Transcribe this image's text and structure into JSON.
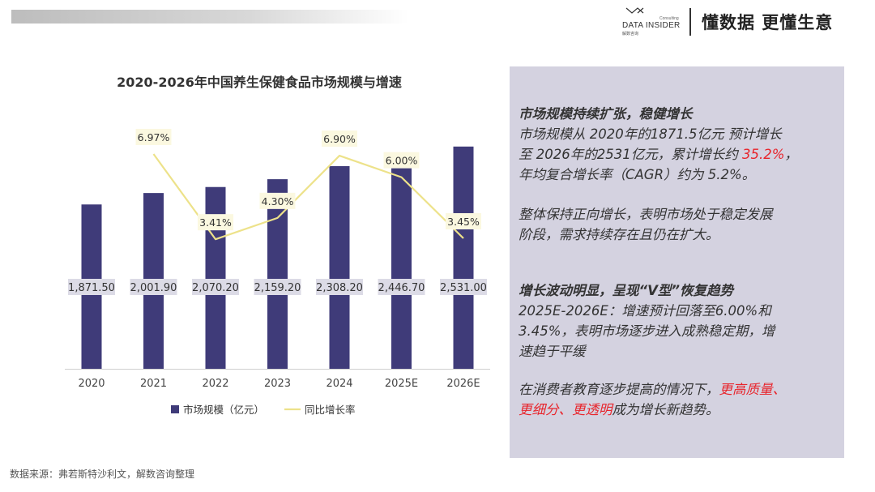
{
  "header": {
    "brand_name": "DATA INSIDER",
    "brand_sub": "Consulting",
    "brand_cn": "解数咨询",
    "slogan": "懂数据 更懂生意"
  },
  "colors": {
    "bar": "#3f3b79",
    "line": "#ede28a",
    "panel": "#d4d2e0",
    "highlight": "#e8242b"
  },
  "chart_data": {
    "type": "bar",
    "title": "2020-2026年中国养生保健食品市场规模与增速",
    "categories": [
      "2020",
      "2021",
      "2022",
      "2023",
      "2024",
      "2025E",
      "2026E"
    ],
    "series": [
      {
        "name": "市场规模（亿元）",
        "type": "bar",
        "values": [
          1871.5,
          2001.9,
          2070.2,
          2159.2,
          2308.2,
          2446.7,
          2531.0
        ],
        "labels": [
          "1,871.50",
          "2,001.90",
          "2,070.20",
          "2,159.20",
          "2,308.20",
          "2,446.70",
          "2,531.00"
        ]
      },
      {
        "name": "同比增长率",
        "type": "line",
        "values": [
          null,
          6.97,
          3.41,
          4.3,
          6.9,
          6.0,
          3.45
        ],
        "labels": [
          "",
          "6.97%",
          "3.41%",
          "4.30%",
          "6.90%",
          "6.00%",
          "3.45%"
        ]
      }
    ],
    "xlabel": "",
    "ylabel": "",
    "ylim": [
      0,
      3000
    ],
    "y2lim": [
      -2,
      9
    ],
    "legend": "bottom",
    "grid": false
  },
  "insights": {
    "p1_head": "市场规模持续扩张，稳健增长",
    "p1_line1": "市场规模从 2020年的1871.5亿元 预计增长",
    "p1_line2a": "至 2026年的2531亿元，累计增长约 ",
    "p1_line2_hl": "35.2%",
    "p1_line2b": "，",
    "p1_line3": "年均复合增长率（CAGR）约为 5.2%。",
    "p2_line1": "整体保持正向增长，表明市场处于稳定发展",
    "p2_line2": "阶段，需求持续存在且仍在扩大。",
    "p3_head": "增长波动明显，呈现“V型”恢复趋势",
    "p3_line1": "2025E-2026E：增速预计回落至6.00%和",
    "p3_line2": "3.45%，表明市场逐步进入成熟稳定期，增",
    "p3_line3": "速趋于平缓",
    "p4_line1a": "在消费者教育逐步提高的情况下，",
    "p4_line1_hl": "更高质量、",
    "p4_line2_hl": "更细分、更透明",
    "p4_line2b": "成为增长新趋势。"
  },
  "footer": {
    "source": "数据来源：弗若斯特沙利文，解数咨询整理"
  }
}
